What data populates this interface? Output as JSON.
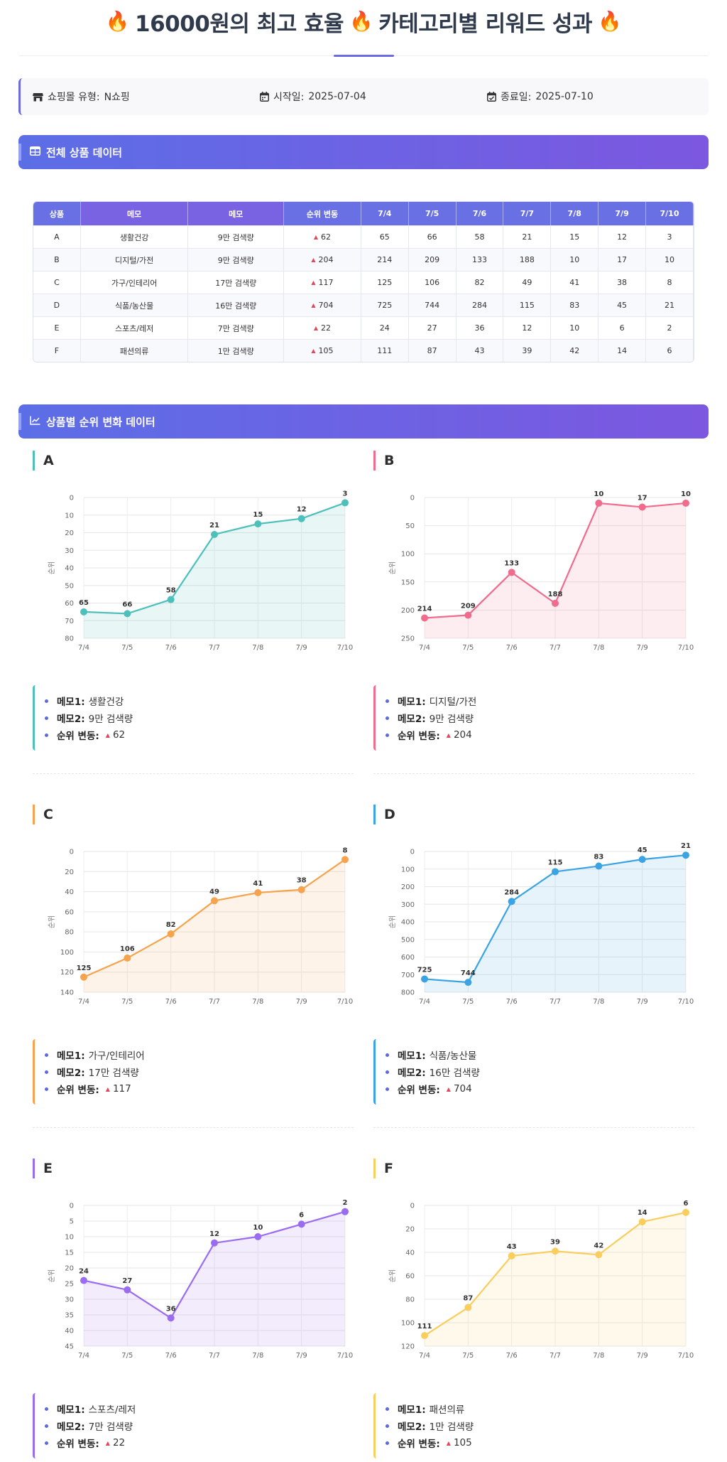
{
  "title": {
    "text": "16000원의 최고 효율  카테고리별 리워드 성과",
    "main": "16000원의 최고 효율",
    "sub": "카테고리별 리워드 성과"
  },
  "info": {
    "mall_label": "쇼핑몰 유형:",
    "mall_value": "N쇼핑",
    "start_label": "시작일:",
    "start_value": "2025-07-04",
    "end_label": "종료일:",
    "end_value": "2025-07-10"
  },
  "sections": {
    "table_title": "전체 상품 데이터",
    "charts_title": "상품별 순위 변화 데이터"
  },
  "table": {
    "headers": [
      "상품",
      "메모",
      "메모",
      "순위 변동",
      "7/4",
      "7/5",
      "7/6",
      "7/7",
      "7/8",
      "7/9",
      "7/10"
    ],
    "rows": [
      [
        "A",
        "생활건강",
        "9만 검색량",
        "62",
        "65",
        "66",
        "58",
        "21",
        "15",
        "12",
        "3"
      ],
      [
        "B",
        "디지털/가전",
        "9만 검색량",
        "204",
        "214",
        "209",
        "133",
        "188",
        "10",
        "17",
        "10"
      ],
      [
        "C",
        "가구/인테리어",
        "17만 검색량",
        "117",
        "125",
        "106",
        "82",
        "49",
        "41",
        "38",
        "8"
      ],
      [
        "D",
        "식품/농산물",
        "16만 검색량",
        "704",
        "725",
        "744",
        "284",
        "115",
        "83",
        "45",
        "21"
      ],
      [
        "E",
        "스포츠/레저",
        "7만 검색량",
        "22",
        "24",
        "27",
        "36",
        "12",
        "10",
        "6",
        "2"
      ],
      [
        "F",
        "패션의류",
        "1만 검색량",
        "105",
        "111",
        "87",
        "43",
        "39",
        "42",
        "14",
        "6"
      ]
    ]
  },
  "labels": {
    "memo1": "메모1:",
    "memo2": "메모2:",
    "change": "순위 변동:"
  },
  "chart_data": [
    {
      "type": "line",
      "title": "A",
      "x": [
        "7/4",
        "7/5",
        "7/6",
        "7/7",
        "7/8",
        "7/9",
        "7/10"
      ],
      "values": [
        65,
        66,
        58,
        21,
        15,
        12,
        3
      ],
      "ylabel": "순위",
      "ylim": [
        0,
        80
      ],
      "yticks": [
        0,
        10,
        20,
        30,
        40,
        50,
        60,
        70,
        80
      ],
      "y_inverted": true,
      "color": "#4ec0bb",
      "memo1": "생활건강",
      "memo2": "9만 검색량",
      "change": "62"
    },
    {
      "type": "line",
      "title": "B",
      "x": [
        "7/4",
        "7/5",
        "7/6",
        "7/7",
        "7/8",
        "7/9",
        "7/10"
      ],
      "values": [
        214,
        209,
        133,
        188,
        10,
        17,
        10
      ],
      "ylabel": "순위",
      "ylim": [
        0,
        250
      ],
      "yticks": [
        0,
        50,
        100,
        150,
        200,
        250
      ],
      "y_inverted": true,
      "color": "#f06b8c",
      "memo1": "디지털/가전",
      "memo2": "9만 검색량",
      "change": "204"
    },
    {
      "type": "line",
      "title": "C",
      "x": [
        "7/4",
        "7/5",
        "7/6",
        "7/7",
        "7/8",
        "7/9",
        "7/10"
      ],
      "values": [
        125,
        106,
        82,
        49,
        41,
        38,
        8
      ],
      "ylabel": "순위",
      "ylim": [
        0,
        140
      ],
      "yticks": [
        0,
        20,
        40,
        60,
        80,
        100,
        120,
        140
      ],
      "y_inverted": true,
      "color": "#f7a24c",
      "memo1": "가구/인테리어",
      "memo2": "17만 검색량",
      "change": "117"
    },
    {
      "type": "line",
      "title": "D",
      "x": [
        "7/4",
        "7/5",
        "7/6",
        "7/7",
        "7/8",
        "7/9",
        "7/10"
      ],
      "values": [
        725,
        744,
        284,
        115,
        83,
        45,
        21
      ],
      "ylabel": "순위",
      "ylim": [
        0,
        800
      ],
      "yticks": [
        0,
        100,
        200,
        300,
        400,
        500,
        600,
        700,
        800
      ],
      "y_inverted": true,
      "color": "#3aa3e3",
      "memo1": "식품/농산물",
      "memo2": "16만 검색량",
      "change": "704"
    },
    {
      "type": "line",
      "title": "E",
      "x": [
        "7/4",
        "7/5",
        "7/6",
        "7/7",
        "7/8",
        "7/9",
        "7/10"
      ],
      "values": [
        24,
        27,
        36,
        12,
        10,
        6,
        2
      ],
      "ylabel": "순위",
      "ylim": [
        0,
        45
      ],
      "yticks": [
        0,
        5,
        10,
        15,
        20,
        25,
        30,
        35,
        40,
        45
      ],
      "y_inverted": true,
      "color": "#9a6cf0",
      "memo1": "스포츠/레저",
      "memo2": "7만 검색량",
      "change": "22"
    },
    {
      "type": "line",
      "title": "F",
      "x": [
        "7/4",
        "7/5",
        "7/6",
        "7/7",
        "7/8",
        "7/9",
        "7/10"
      ],
      "values": [
        111,
        87,
        43,
        39,
        42,
        14,
        6
      ],
      "ylabel": "순위",
      "ylim": [
        0,
        120
      ],
      "yticks": [
        0,
        20,
        40,
        60,
        80,
        100,
        120
      ],
      "y_inverted": true,
      "color": "#f9cd5e",
      "memo1": "패션의류",
      "memo2": "1만 검색량",
      "change": "105"
    }
  ]
}
